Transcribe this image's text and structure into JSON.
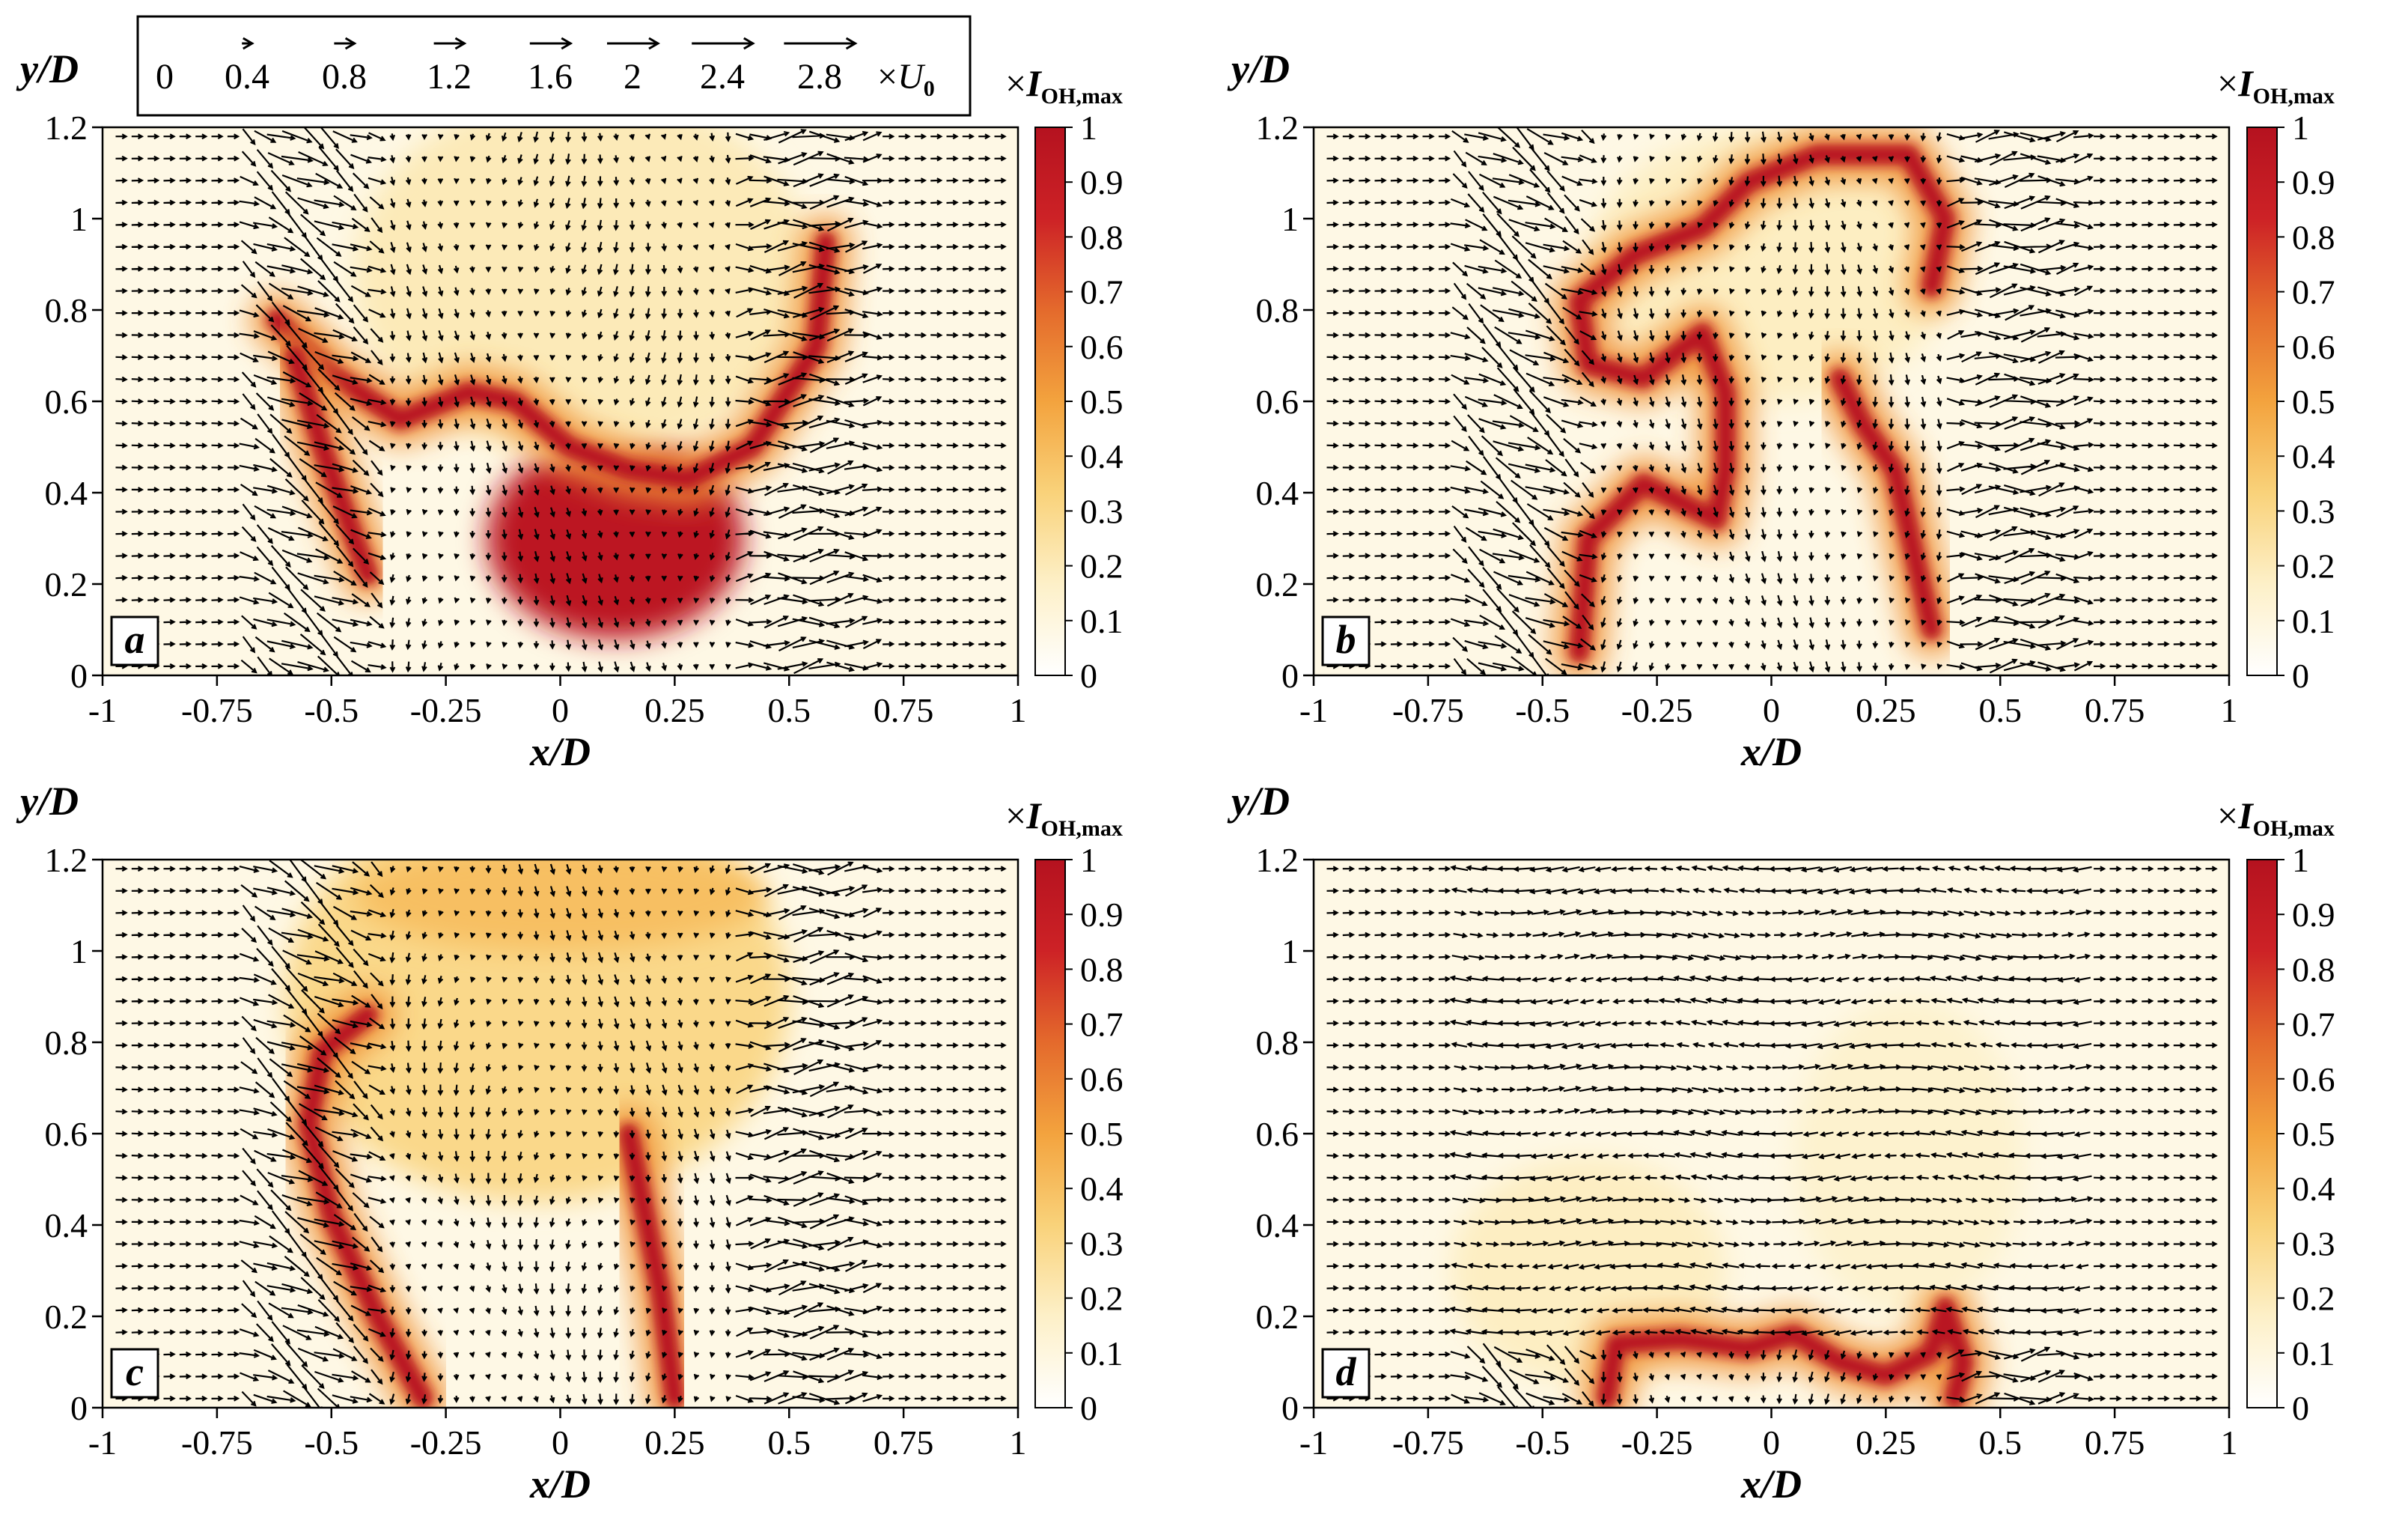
{
  "legend": {
    "entries": [
      "0",
      "0.4",
      "0.8",
      "1.2",
      "1.6",
      "2",
      "2.4",
      "2.8"
    ],
    "magnitudes": [
      0,
      0.4,
      0.8,
      1.2,
      1.6,
      2,
      2.4,
      2.8
    ],
    "unit_prefix": "×",
    "unit_symbol": "U",
    "unit_sub": "0"
  },
  "colorbar": {
    "label_prefix": "×",
    "label_symbol": "I",
    "label_sub": "OH,max",
    "ticks": [
      "1",
      "0.9",
      "0.8",
      "0.7",
      "0.6",
      "0.5",
      "0.4",
      "0.3",
      "0.2",
      "0.1",
      "0"
    ],
    "colors": [
      "#ffffff",
      "#fdf0c8",
      "#f9d27a",
      "#f3a33e",
      "#e46a2c",
      "#cd2226",
      "#b5121f"
    ]
  },
  "chart_data": [
    {
      "type": "heatmap",
      "panel_label": "a",
      "xlabel": "x/D",
      "ylabel": "y/D",
      "xlim": [
        -1,
        1
      ],
      "ylim": [
        0,
        1.2
      ],
      "x_ticks": [
        "-1",
        "-0.75",
        "-0.5",
        "-0.25",
        "0",
        "0.25",
        "0.5",
        "0.75",
        "1"
      ],
      "y_ticks": [
        "0",
        "0.2",
        "0.4",
        "0.6",
        "0.8",
        "1",
        "1.2"
      ],
      "flame_path": [
        [
          -0.62,
          0.78
        ],
        [
          -0.5,
          0.66
        ],
        [
          -0.35,
          0.56
        ],
        [
          -0.2,
          0.62
        ],
        [
          -0.1,
          0.6
        ],
        [
          0.02,
          0.5
        ],
        [
          0.15,
          0.45
        ],
        [
          0.28,
          0.43
        ],
        [
          0.42,
          0.5
        ],
        [
          0.56,
          0.72
        ],
        [
          0.58,
          0.95
        ]
      ],
      "flame_path_2": [
        [
          -0.58,
          0.7
        ],
        [
          -0.52,
          0.5
        ],
        [
          -0.45,
          0.3
        ],
        [
          -0.42,
          0.22
        ]
      ],
      "blobs": [
        {
          "x": 0.12,
          "y": 0.3,
          "rx": 0.28,
          "ry": 0.22,
          "i": 0.95
        },
        {
          "x": 0.05,
          "y": 0.88,
          "rx": 0.5,
          "ry": 0.4,
          "i": 0.2
        }
      ]
    },
    {
      "type": "heatmap",
      "panel_label": "b",
      "xlabel": "x/D",
      "ylabel": "y/D",
      "xlim": [
        -1,
        1
      ],
      "ylim": [
        0,
        1.2
      ],
      "x_ticks": [
        "-1",
        "-0.75",
        "-0.5",
        "-0.25",
        "0",
        "0.25",
        "0.5",
        "0.75",
        "1"
      ],
      "y_ticks": [
        "0",
        "0.2",
        "0.4",
        "0.6",
        "0.8",
        "1",
        "1.2"
      ],
      "flame_path": [
        [
          -0.42,
          0.05
        ],
        [
          -0.4,
          0.3
        ],
        [
          -0.28,
          0.42
        ],
        [
          -0.12,
          0.34
        ],
        [
          -0.1,
          0.45
        ],
        [
          -0.1,
          0.62
        ],
        [
          -0.15,
          0.75
        ],
        [
          -0.28,
          0.65
        ],
        [
          -0.4,
          0.68
        ],
        [
          -0.42,
          0.82
        ],
        [
          -0.3,
          0.92
        ],
        [
          -0.15,
          0.98
        ],
        [
          -0.05,
          1.08
        ],
        [
          0.1,
          1.14
        ],
        [
          0.3,
          1.14
        ],
        [
          0.38,
          1.0
        ],
        [
          0.35,
          0.85
        ]
      ],
      "flame_path_2": [
        [
          0.15,
          0.65
        ],
        [
          0.2,
          0.55
        ],
        [
          0.27,
          0.45
        ],
        [
          0.3,
          0.32
        ],
        [
          0.35,
          0.1
        ]
      ],
      "blobs": [
        {
          "x": 0.0,
          "y": 0.9,
          "rx": 0.4,
          "ry": 0.3,
          "i": 0.18
        }
      ]
    },
    {
      "type": "heatmap",
      "panel_label": "c",
      "xlabel": "x/D",
      "ylabel": "y/D",
      "xlim": [
        -1,
        1
      ],
      "ylim": [
        0,
        1.2
      ],
      "x_ticks": [
        "-1",
        "-0.75",
        "-0.5",
        "-0.25",
        "0",
        "0.25",
        "0.5",
        "0.75",
        "1"
      ],
      "y_ticks": [
        "0",
        "0.2",
        "0.4",
        "0.6",
        "0.8",
        "1",
        "1.2"
      ],
      "flame_path": [
        [
          -0.3,
          0.02
        ],
        [
          -0.4,
          0.2
        ],
        [
          -0.5,
          0.42
        ],
        [
          -0.55,
          0.62
        ],
        [
          -0.52,
          0.78
        ],
        [
          -0.42,
          0.86
        ]
      ],
      "flame_path_2": [
        [
          0.25,
          0.02
        ],
        [
          0.22,
          0.25
        ],
        [
          0.18,
          0.45
        ],
        [
          0.15,
          0.6
        ]
      ],
      "blobs": [
        {
          "x": -0.05,
          "y": 0.9,
          "rx": 0.55,
          "ry": 0.45,
          "i": 0.3
        },
        {
          "x": 0.0,
          "y": 1.12,
          "rx": 0.45,
          "ry": 0.12,
          "i": 0.4
        }
      ]
    },
    {
      "type": "heatmap",
      "panel_label": "d",
      "xlabel": "x/D",
      "ylabel": "y/D",
      "xlim": [
        -1,
        1
      ],
      "ylim": [
        0,
        1.2
      ],
      "x_ticks": [
        "-1",
        "-0.75",
        "-0.5",
        "-0.25",
        "0",
        "0.25",
        "0.5",
        "0.75",
        "1"
      ],
      "y_ticks": [
        "0",
        "0.2",
        "0.4",
        "0.6",
        "0.8",
        "1",
        "1.2"
      ],
      "flame_path": [
        [
          -0.36,
          0.02
        ],
        [
          -0.34,
          0.14
        ],
        [
          -0.2,
          0.15
        ],
        [
          -0.05,
          0.13
        ],
        [
          0.05,
          0.16
        ],
        [
          0.15,
          0.1
        ],
        [
          0.25,
          0.07
        ],
        [
          0.35,
          0.12
        ],
        [
          0.38,
          0.22
        ],
        [
          0.42,
          0.1
        ],
        [
          0.4,
          0.02
        ]
      ],
      "flame_path_2": [],
      "blobs": [
        {
          "x": -0.4,
          "y": 0.3,
          "rx": 0.3,
          "ry": 0.25,
          "i": 0.18
        },
        {
          "x": 0.3,
          "y": 0.55,
          "rx": 0.25,
          "ry": 0.35,
          "i": 0.15
        }
      ]
    }
  ]
}
